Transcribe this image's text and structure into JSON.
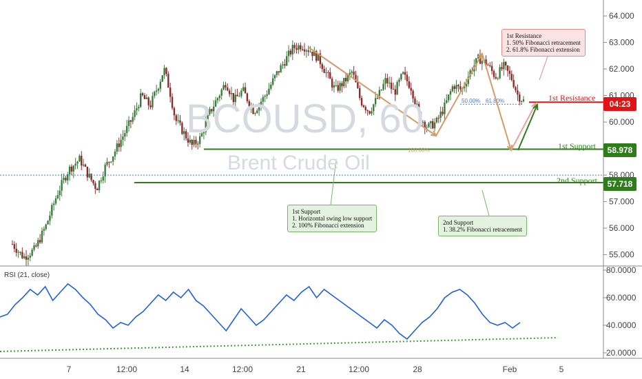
{
  "chart_data": [
    {
      "type": "candlestick",
      "title": "BCOUSD, 60",
      "subtitle": "Brent Crude Oil",
      "x_tick_labels": [
        "7",
        "12:00",
        "14",
        "12:00",
        "21",
        "12:00",
        "28",
        "Feb",
        "5"
      ],
      "y_tick_labels": [
        "55.000",
        "56.000",
        "57.000",
        "58.000",
        "60.000",
        "61.000",
        "62.000",
        "63.000",
        "64.000"
      ],
      "ylim": [
        54.6,
        64.6
      ],
      "grid": false,
      "price_path": [
        [
          0,
          55.4
        ],
        [
          0.02,
          54.9
        ],
        [
          0.04,
          55.2
        ],
        [
          0.06,
          56.1
        ],
        [
          0.08,
          57.3
        ],
        [
          0.1,
          58.2
        ],
        [
          0.12,
          58.6
        ],
        [
          0.135,
          58.0
        ],
        [
          0.15,
          57.5
        ],
        [
          0.165,
          58.3
        ],
        [
          0.18,
          58.8
        ],
        [
          0.2,
          59.6
        ],
        [
          0.215,
          60.2
        ],
        [
          0.23,
          61.0
        ],
        [
          0.245,
          60.6
        ],
        [
          0.26,
          61.4
        ],
        [
          0.27,
          62.0
        ],
        [
          0.28,
          61.2
        ],
        [
          0.29,
          60.1
        ],
        [
          0.305,
          59.6
        ],
        [
          0.32,
          59.1
        ],
        [
          0.335,
          59.4
        ],
        [
          0.35,
          60.3
        ],
        [
          0.365,
          60.9
        ],
        [
          0.38,
          61.5
        ],
        [
          0.395,
          60.8
        ],
        [
          0.41,
          61.2
        ],
        [
          0.43,
          60.4
        ],
        [
          0.45,
          61.0
        ],
        [
          0.47,
          61.8
        ],
        [
          0.485,
          62.3
        ],
        [
          0.5,
          62.8
        ],
        [
          0.515,
          62.9
        ],
        [
          0.53,
          62.7
        ],
        [
          0.545,
          62.4
        ],
        [
          0.56,
          61.8
        ],
        [
          0.575,
          61.2
        ],
        [
          0.59,
          61.5
        ],
        [
          0.605,
          61.9
        ],
        [
          0.62,
          60.8
        ],
        [
          0.635,
          60.4
        ],
        [
          0.65,
          60.9
        ],
        [
          0.665,
          61.6
        ],
        [
          0.68,
          61.1
        ],
        [
          0.695,
          61.8
        ],
        [
          0.71,
          61.3
        ],
        [
          0.725,
          60.2
        ],
        [
          0.74,
          59.8
        ],
        [
          0.755,
          60.0
        ],
        [
          0.77,
          60.6
        ],
        [
          0.785,
          61.4
        ],
        [
          0.8,
          61.2
        ],
        [
          0.815,
          61.9
        ],
        [
          0.83,
          62.4
        ],
        [
          0.845,
          62.2
        ],
        [
          0.86,
          61.7
        ],
        [
          0.875,
          62.1
        ],
        [
          0.89,
          61.6
        ],
        [
          0.9,
          61.0
        ],
        [
          0.91,
          60.8
        ]
      ]
    },
    {
      "type": "line",
      "title": "RSI (21, close)",
      "y_tick_labels": [
        "20.0000",
        "40.0000",
        "60.0000",
        "80.0000"
      ],
      "ylim": [
        16,
        82
      ],
      "series": [
        {
          "values": [
            46,
            48,
            55,
            60,
            66,
            62,
            68,
            58,
            64,
            70,
            66,
            60,
            55,
            48,
            44,
            38,
            42,
            40,
            46,
            50,
            56,
            62,
            58,
            64,
            60,
            66,
            58,
            54,
            48,
            42,
            36,
            44,
            52,
            46,
            40,
            44,
            50,
            56,
            62,
            58,
            64,
            68,
            60,
            66,
            62,
            58,
            54,
            50,
            46,
            42,
            38,
            44,
            40,
            34,
            30,
            36,
            42,
            46,
            52,
            60,
            64,
            66,
            62,
            56,
            48,
            42,
            40,
            42,
            38,
            42
          ]
        }
      ]
    }
  ],
  "levels": {
    "resistance_label": "1st Resistance",
    "resistance_price": "04:23",
    "resistance_value": 60.75,
    "support1_label": "1st Support",
    "support1_price": "58.978",
    "support1_value": 58.978,
    "support2_label": "2nd Support",
    "support2_price": "57.718",
    "support2_value": 57.718,
    "blue_dotted_value": 58.0
  },
  "fib_labels": {
    "retr_50": "50.00%",
    "retr_618": "61.80%",
    "ext_100": "100.00%"
  },
  "notes": {
    "resistance": "1st Resistance\n1. 50% Fibonacci retracement\n2. 61.8% Fibonacci extension",
    "support1": "1st Support\n1. Horizontal swing low support\n2. 100% Fibonacci extension",
    "support2": "2nd Support\n1. 38.2% Fibonacci retracement"
  },
  "colors": {
    "up": "#3c7a3c",
    "down": "#8b2a2a",
    "rsi": "#1f5fd6",
    "support": "#2e7d1a",
    "resistance": "#e01414",
    "fib_arrow": "#d39b67",
    "trend_dotted": "#3d9a30"
  }
}
